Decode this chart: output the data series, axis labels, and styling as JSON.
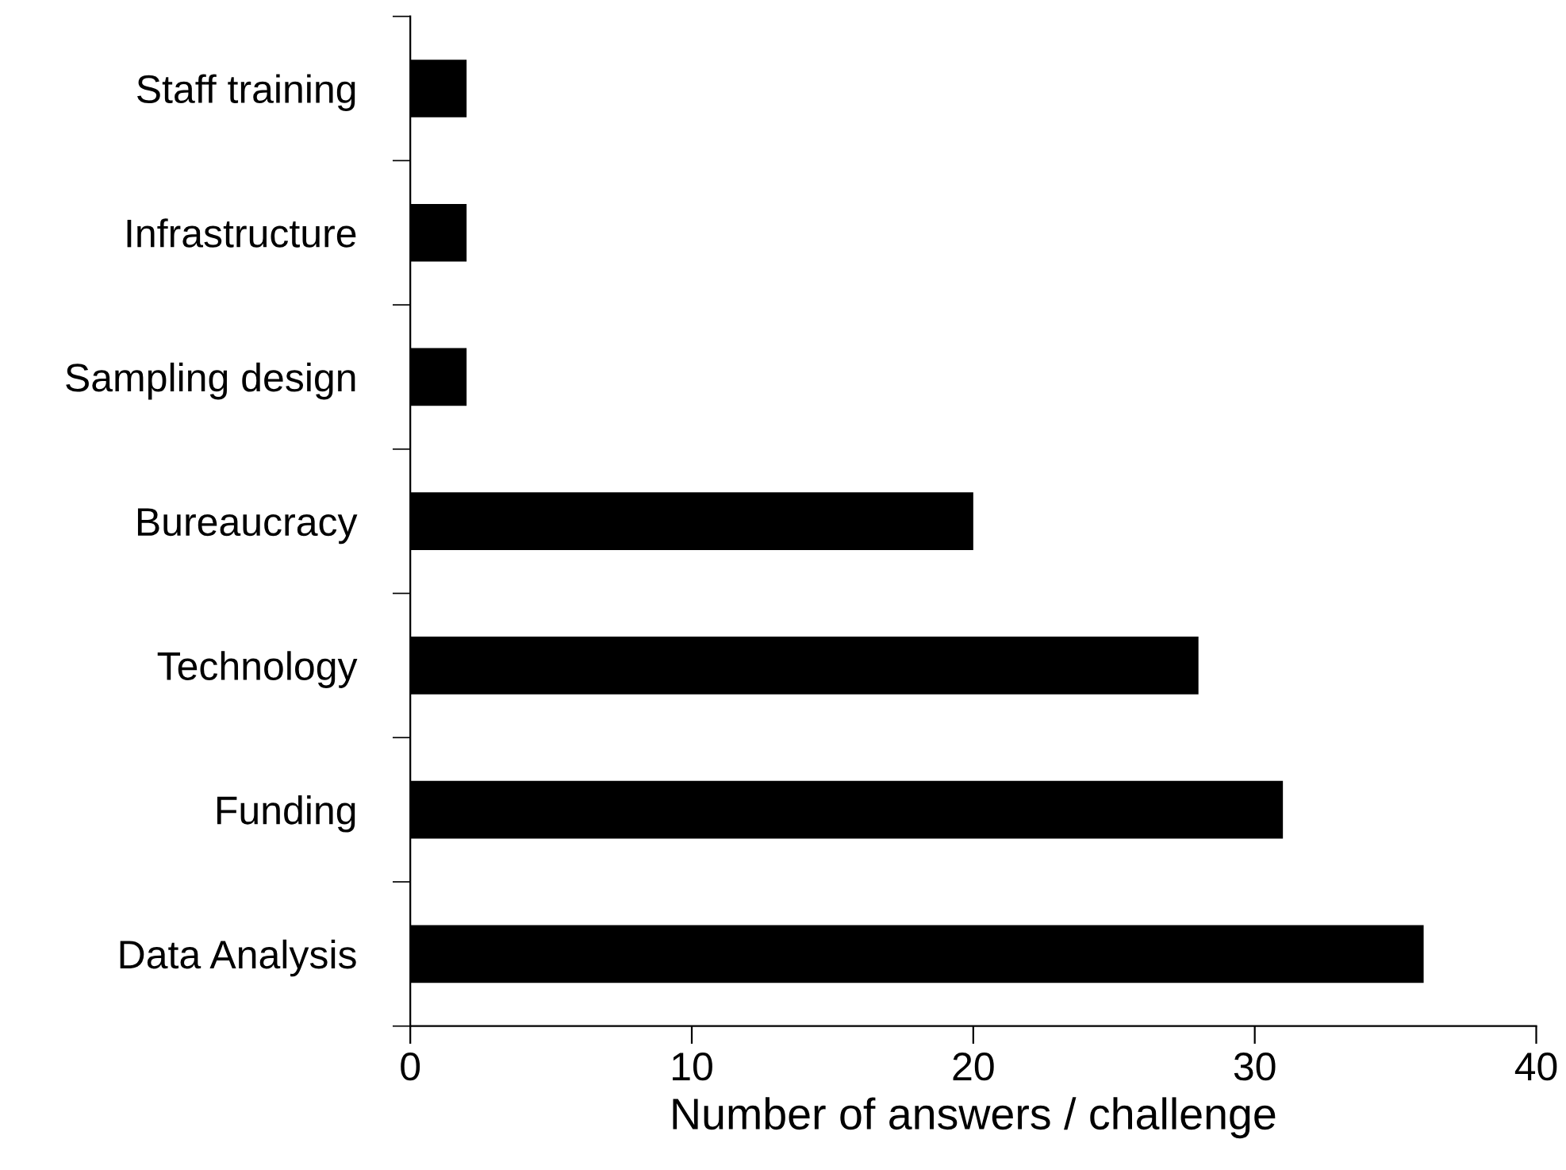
{
  "chart_data": {
    "type": "bar",
    "orientation": "horizontal",
    "xlabel": "Number of answers / challenge",
    "categories": [
      "Staff training",
      "Infrastructure",
      "Sampling design",
      "Bureaucracy",
      "Technology",
      "Funding",
      "Data Analysis"
    ],
    "values": [
      2,
      2,
      2,
      20,
      28,
      31,
      36
    ],
    "color": "#000000",
    "xlim": [
      0,
      40
    ],
    "xticks": [
      0,
      10,
      20,
      30,
      40
    ],
    "grid": false,
    "legend": false
  }
}
